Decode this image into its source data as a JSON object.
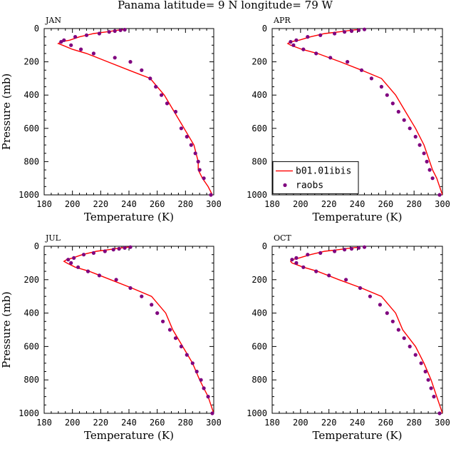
{
  "figure": {
    "title": "Panama  latitude= 9 N longitude= 79 W"
  },
  "legend": {
    "model_label": "b01.01ibis",
    "obs_label": "raobs",
    "model_color": "#ff0000",
    "obs_color": "#7f007f"
  },
  "chart_data": [
    {
      "type": "line",
      "panel": "JAN",
      "xlabel": "Temperature (K)",
      "ylabel": "Pressure (mb)",
      "xlim": [
        180,
        300
      ],
      "ylim": [
        1000,
        0
      ],
      "xticks": [
        180,
        200,
        220,
        240,
        260,
        280,
        300
      ],
      "yticks": [
        0,
        200,
        400,
        600,
        800,
        1000
      ],
      "series": [
        {
          "name": "b01.01ibis",
          "kind": "line",
          "temperature": [
            238,
            232,
            224,
            215,
            205,
            198,
            192,
            190,
            193,
            200,
            210,
            225,
            240,
            255,
            265,
            272,
            279,
            286,
            289,
            289,
            292,
            296,
            299
          ],
          "pressure": [
            5,
            10,
            20,
            30,
            50,
            70,
            80,
            90,
            100,
            125,
            150,
            200,
            250,
            300,
            400,
            500,
            600,
            700,
            800,
            850,
            900,
            950,
            1000
          ]
        },
        {
          "name": "raobs",
          "kind": "scatter",
          "temperature": [
            237,
            234,
            230,
            226,
            219,
            210,
            202,
            194,
            192,
            199,
            206,
            215,
            230,
            241,
            249,
            255,
            259,
            263,
            267,
            273,
            277,
            281,
            284,
            287,
            289,
            290,
            293,
            298
          ],
          "pressure": [
            7,
            10,
            15,
            20,
            30,
            40,
            50,
            70,
            80,
            100,
            125,
            150,
            175,
            200,
            250,
            300,
            350,
            400,
            450,
            500,
            600,
            650,
            700,
            750,
            800,
            850,
            900,
            1000
          ]
        }
      ]
    },
    {
      "type": "line",
      "panel": "APR",
      "xlabel": "Temperature (K)",
      "ylabel": "",
      "xlim": [
        180,
        300
      ],
      "ylim": [
        1000,
        0
      ],
      "xticks": [
        180,
        200,
        220,
        240,
        260,
        280,
        300
      ],
      "yticks": [
        0,
        200,
        400,
        600,
        800,
        1000
      ],
      "series": [
        {
          "name": "b01.01ibis",
          "kind": "line",
          "temperature": [
            242,
            236,
            227,
            217,
            207,
            199,
            193,
            191,
            193,
            201,
            212,
            228,
            243,
            257,
            267,
            274,
            281,
            287,
            291,
            293,
            296,
            298,
            300
          ],
          "pressure": [
            5,
            10,
            20,
            30,
            50,
            70,
            80,
            90,
            100,
            125,
            150,
            200,
            250,
            300,
            400,
            500,
            600,
            700,
            800,
            850,
            900,
            950,
            1000
          ]
        },
        {
          "name": "raobs",
          "kind": "scatter",
          "temperature": [
            245,
            241,
            236,
            231,
            224,
            214,
            205,
            197,
            193,
            195,
            202,
            211,
            221,
            233,
            243,
            250,
            257,
            261,
            265,
            269,
            273,
            277,
            281,
            284,
            287,
            289,
            291,
            293,
            298
          ],
          "pressure": [
            5,
            10,
            15,
            20,
            30,
            40,
            50,
            70,
            80,
            100,
            125,
            150,
            175,
            200,
            250,
            300,
            350,
            400,
            450,
            500,
            550,
            600,
            650,
            700,
            750,
            800,
            850,
            900,
            1000
          ]
        }
      ]
    },
    {
      "type": "line",
      "panel": "JUL",
      "xlabel": "Temperature (K)",
      "ylabel": "Pressure (mb)",
      "xlim": [
        180,
        300
      ],
      "ylim": [
        1000,
        0
      ],
      "xticks": [
        180,
        200,
        220,
        240,
        260,
        280,
        300
      ],
      "yticks": [
        0,
        200,
        400,
        600,
        800,
        1000
      ],
      "series": [
        {
          "name": "b01.01ibis",
          "kind": "line",
          "temperature": [
            240,
            234,
            226,
            217,
            207,
            200,
            196,
            194,
            196,
            202,
            212,
            227,
            242,
            256,
            266,
            271,
            278,
            285,
            290,
            293,
            296,
            298,
            300
          ],
          "pressure": [
            5,
            10,
            20,
            30,
            50,
            70,
            80,
            90,
            100,
            125,
            150,
            200,
            250,
            300,
            400,
            500,
            600,
            700,
            800,
            850,
            900,
            950,
            1000
          ]
        },
        {
          "name": "raobs",
          "kind": "scatter",
          "temperature": [
            241,
            237,
            233,
            229,
            223,
            215,
            208,
            201,
            197,
            199,
            204,
            211,
            219,
            231,
            241,
            249,
            256,
            260,
            264,
            269,
            273,
            277,
            281,
            285,
            288,
            291,
            293,
            296,
            299
          ],
          "pressure": [
            5,
            10,
            15,
            20,
            30,
            40,
            50,
            70,
            80,
            100,
            125,
            150,
            175,
            200,
            250,
            300,
            350,
            400,
            450,
            500,
            550,
            600,
            650,
            700,
            750,
            800,
            850,
            900,
            1000
          ]
        }
      ]
    },
    {
      "type": "line",
      "panel": "OCT",
      "xlabel": "Temperature (K)",
      "ylabel": "",
      "xlim": [
        180,
        300
      ],
      "ylim": [
        1000,
        0
      ],
      "xticks": [
        180,
        200,
        220,
        240,
        260,
        280,
        300
      ],
      "yticks": [
        0,
        200,
        400,
        600,
        800,
        1000
      ],
      "series": [
        {
          "name": "b01.01ibis",
          "kind": "line",
          "temperature": [
            242,
            236,
            227,
            217,
            207,
            199,
            194,
            193,
            194,
            202,
            212,
            227,
            243,
            257,
            267,
            272,
            281,
            287,
            292,
            294,
            296,
            298,
            300
          ],
          "pressure": [
            5,
            10,
            20,
            30,
            50,
            70,
            80,
            90,
            100,
            125,
            150,
            200,
            250,
            300,
            400,
            500,
            600,
            700,
            800,
            850,
            900,
            950,
            1000
          ]
        },
        {
          "name": "raobs",
          "kind": "scatter",
          "temperature": [
            245,
            241,
            236,
            231,
            224,
            214,
            205,
            197,
            194,
            197,
            202,
            211,
            220,
            232,
            242,
            249,
            256,
            261,
            265,
            269,
            273,
            277,
            281,
            285,
            288,
            290,
            292,
            294,
            298
          ],
          "pressure": [
            5,
            10,
            15,
            20,
            30,
            40,
            50,
            70,
            80,
            100,
            125,
            150,
            175,
            200,
            250,
            300,
            350,
            400,
            450,
            500,
            550,
            600,
            650,
            700,
            750,
            800,
            850,
            900,
            1000
          ]
        }
      ]
    }
  ]
}
